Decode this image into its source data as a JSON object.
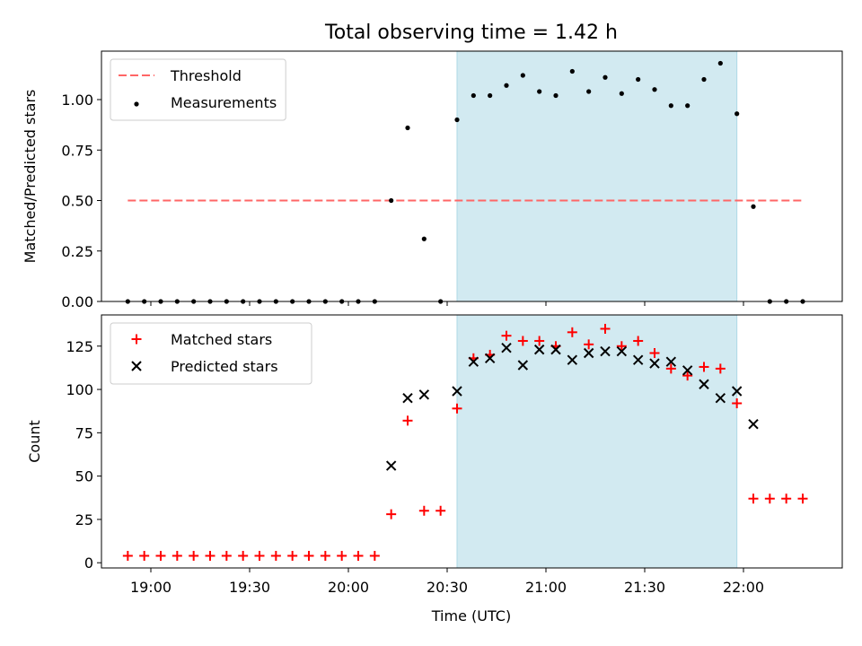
{
  "figure": {
    "title": "Total observing time = 1.42 h"
  },
  "chart_data": [
    {
      "type": "scatter",
      "ylabel": "Matched/Predicted stars",
      "ylim": [
        0,
        1.24
      ],
      "yticks": [
        "0.00",
        "0.25",
        "0.50",
        "0.75",
        "1.00"
      ],
      "ytick_values": [
        0,
        0.25,
        0.5,
        0.75,
        1.0
      ],
      "x_time_range": [
        "18:45",
        "22:30"
      ],
      "shaded_range": [
        "20:33",
        "21:58"
      ],
      "shade_color": "#add8e6",
      "legend_position": "upper left",
      "threshold": {
        "name": "Threshold",
        "value": 0.5,
        "x_range": [
          "18:53",
          "22:18"
        ],
        "color": "#ff6666",
        "style": "dashed"
      },
      "series": [
        {
          "name": "Measurements",
          "marker": "dot",
          "color": "#000000",
          "points": [
            [
              "18:53",
              0.0
            ],
            [
              "18:58",
              0.0
            ],
            [
              "19:03",
              0.0
            ],
            [
              "19:08",
              0.0
            ],
            [
              "19:13",
              0.0
            ],
            [
              "19:18",
              0.0
            ],
            [
              "19:23",
              0.0
            ],
            [
              "19:28",
              0.0
            ],
            [
              "19:33",
              0.0
            ],
            [
              "19:38",
              0.0
            ],
            [
              "19:43",
              0.0
            ],
            [
              "19:48",
              0.0
            ],
            [
              "19:53",
              0.0
            ],
            [
              "19:58",
              0.0
            ],
            [
              "20:03",
              0.0
            ],
            [
              "20:08",
              0.0
            ],
            [
              "20:13",
              0.5
            ],
            [
              "20:18",
              0.86
            ],
            [
              "20:23",
              0.31
            ],
            [
              "20:28",
              0.0
            ],
            [
              "20:33",
              0.9
            ],
            [
              "20:38",
              1.02
            ],
            [
              "20:43",
              1.02
            ],
            [
              "20:48",
              1.07
            ],
            [
              "20:53",
              1.12
            ],
            [
              "20:58",
              1.04
            ],
            [
              "21:03",
              1.02
            ],
            [
              "21:08",
              1.14
            ],
            [
              "21:13",
              1.04
            ],
            [
              "21:18",
              1.11
            ],
            [
              "21:23",
              1.03
            ],
            [
              "21:28",
              1.1
            ],
            [
              "21:33",
              1.05
            ],
            [
              "21:38",
              0.97
            ],
            [
              "21:43",
              0.97
            ],
            [
              "21:48",
              1.1
            ],
            [
              "21:53",
              1.18
            ],
            [
              "21:58",
              0.93
            ],
            [
              "22:03",
              0.47
            ],
            [
              "22:08",
              0.0
            ],
            [
              "22:13",
              0.0
            ],
            [
              "22:18",
              0.0
            ]
          ]
        }
      ]
    },
    {
      "type": "scatter",
      "xlabel": "Time (UTC)",
      "ylabel": "Count",
      "ylim": [
        -3,
        143
      ],
      "yticks": [
        "0",
        "25",
        "50",
        "75",
        "100",
        "125"
      ],
      "ytick_values": [
        0,
        25,
        50,
        75,
        100,
        125
      ],
      "x_time_range": [
        "18:45",
        "22:30"
      ],
      "xticks": [
        "19:00",
        "19:30",
        "20:00",
        "20:30",
        "21:00",
        "21:30",
        "22:00"
      ],
      "shaded_range": [
        "20:33",
        "21:58"
      ],
      "shade_color": "#add8e6",
      "legend_position": "upper left",
      "series": [
        {
          "name": "Matched stars",
          "marker": "plus",
          "color": "#ff0000",
          "points": [
            [
              "18:53",
              4
            ],
            [
              "18:58",
              4
            ],
            [
              "19:03",
              4
            ],
            [
              "19:08",
              4
            ],
            [
              "19:13",
              4
            ],
            [
              "19:18",
              4
            ],
            [
              "19:23",
              4
            ],
            [
              "19:28",
              4
            ],
            [
              "19:33",
              4
            ],
            [
              "19:38",
              4
            ],
            [
              "19:43",
              4
            ],
            [
              "19:48",
              4
            ],
            [
              "19:53",
              4
            ],
            [
              "19:58",
              4
            ],
            [
              "20:03",
              4
            ],
            [
              "20:08",
              4
            ],
            [
              "20:13",
              28
            ],
            [
              "20:18",
              82
            ],
            [
              "20:23",
              30
            ],
            [
              "20:28",
              30
            ],
            [
              "20:33",
              89
            ],
            [
              "20:38",
              118
            ],
            [
              "20:43",
              120
            ],
            [
              "20:48",
              131
            ],
            [
              "20:53",
              128
            ],
            [
              "20:58",
              128
            ],
            [
              "21:03",
              125
            ],
            [
              "21:08",
              133
            ],
            [
              "21:13",
              126
            ],
            [
              "21:18",
              135
            ],
            [
              "21:23",
              125
            ],
            [
              "21:28",
              128
            ],
            [
              "21:33",
              121
            ],
            [
              "21:38",
              112
            ],
            [
              "21:43",
              108
            ],
            [
              "21:48",
              113
            ],
            [
              "21:53",
              112
            ],
            [
              "21:58",
              92
            ],
            [
              "22:03",
              37
            ],
            [
              "22:08",
              37
            ],
            [
              "22:13",
              37
            ],
            [
              "22:18",
              37
            ]
          ]
        },
        {
          "name": "Predicted stars",
          "marker": "x",
          "color": "#000000",
          "points": [
            [
              "20:13",
              56
            ],
            [
              "20:18",
              95
            ],
            [
              "20:23",
              97
            ],
            [
              "20:33",
              99
            ],
            [
              "20:38",
              116
            ],
            [
              "20:43",
              118
            ],
            [
              "20:48",
              124
            ],
            [
              "20:53",
              114
            ],
            [
              "20:58",
              123
            ],
            [
              "21:03",
              123
            ],
            [
              "21:08",
              117
            ],
            [
              "21:13",
              121
            ],
            [
              "21:18",
              122
            ],
            [
              "21:23",
              122
            ],
            [
              "21:28",
              117
            ],
            [
              "21:33",
              115
            ],
            [
              "21:38",
              116
            ],
            [
              "21:43",
              111
            ],
            [
              "21:48",
              103
            ],
            [
              "21:53",
              95
            ],
            [
              "21:58",
              99
            ],
            [
              "22:03",
              80
            ]
          ]
        }
      ]
    }
  ]
}
